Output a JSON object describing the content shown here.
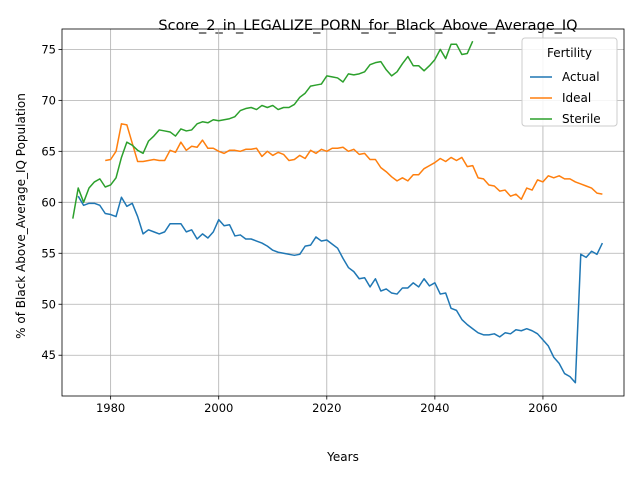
{
  "chart_data": {
    "type": "line",
    "title": "Score_2_in_LEGALIZE_PORN_for_Black_Above_Average_IQ",
    "xlabel": "Years",
    "ylabel": "% of Black Above_Average_IQ Population",
    "xlim": [
      1971,
      2075
    ],
    "ylim": [
      41,
      77
    ],
    "xticks": [
      1980,
      2000,
      2020,
      2040,
      2060
    ],
    "yticks": [
      45,
      50,
      55,
      60,
      65,
      70,
      75
    ],
    "grid": true,
    "legend": {
      "title": "Fertility",
      "placement": "top-right"
    },
    "series": [
      {
        "name": "Actual",
        "color": "#1f77b4",
        "points": [
          [
            1974,
            60.6
          ],
          [
            1975,
            59.7
          ],
          [
            1976,
            59.9
          ],
          [
            1977,
            59.9
          ],
          [
            1978,
            59.7
          ],
          [
            1979,
            58.9
          ],
          [
            1980,
            58.8
          ],
          [
            1981,
            58.6
          ],
          [
            1982,
            60.5
          ],
          [
            1983,
            59.6
          ],
          [
            1984,
            59.9
          ],
          [
            1985,
            58.6
          ],
          [
            1986,
            56.9
          ],
          [
            1987,
            57.3
          ],
          [
            1988,
            57.1
          ],
          [
            1989,
            56.9
          ],
          [
            1990,
            57.1
          ],
          [
            1991,
            57.9
          ],
          [
            1992,
            57.9
          ],
          [
            1993,
            57.9
          ],
          [
            1994,
            57.1
          ],
          [
            1995,
            57.3
          ],
          [
            1996,
            56.4
          ],
          [
            1997,
            56.9
          ],
          [
            1998,
            56.5
          ],
          [
            1999,
            57.1
          ],
          [
            2000,
            58.3
          ],
          [
            2001,
            57.7
          ],
          [
            2002,
            57.8
          ],
          [
            2003,
            56.7
          ],
          [
            2004,
            56.8
          ],
          [
            2005,
            56.4
          ],
          [
            2006,
            56.4
          ],
          [
            2007,
            56.2
          ],
          [
            2008,
            56.0
          ],
          [
            2009,
            55.7
          ],
          [
            2010,
            55.3
          ],
          [
            2011,
            55.1
          ],
          [
            2012,
            55.0
          ],
          [
            2013,
            54.9
          ],
          [
            2014,
            54.8
          ],
          [
            2015,
            54.9
          ],
          [
            2016,
            55.7
          ],
          [
            2017,
            55.8
          ],
          [
            2018,
            56.6
          ],
          [
            2019,
            56.2
          ],
          [
            2020,
            56.3
          ],
          [
            2021,
            55.9
          ],
          [
            2022,
            55.5
          ],
          [
            2023,
            54.5
          ],
          [
            2024,
            53.6
          ],
          [
            2025,
            53.2
          ],
          [
            2026,
            52.5
          ],
          [
            2027,
            52.6
          ],
          [
            2028,
            51.7
          ],
          [
            2029,
            52.5
          ],
          [
            2030,
            51.3
          ],
          [
            2031,
            51.5
          ],
          [
            2032,
            51.1
          ],
          [
            2033,
            51.0
          ],
          [
            2034,
            51.6
          ],
          [
            2035,
            51.6
          ],
          [
            2036,
            52.1
          ],
          [
            2037,
            51.7
          ],
          [
            2038,
            52.5
          ],
          [
            2039,
            51.8
          ],
          [
            2040,
            52.1
          ],
          [
            2041,
            51.0
          ],
          [
            2042,
            51.1
          ],
          [
            2043,
            49.6
          ],
          [
            2044,
            49.4
          ],
          [
            2045,
            48.5
          ],
          [
            2046,
            48.0
          ],
          [
            2047,
            47.6
          ],
          [
            2048,
            47.2
          ],
          [
            2049,
            47.0
          ],
          [
            2050,
            47.0
          ],
          [
            2051,
            47.1
          ],
          [
            2052,
            46.8
          ],
          [
            2053,
            47.2
          ],
          [
            2054,
            47.1
          ],
          [
            2055,
            47.5
          ],
          [
            2056,
            47.4
          ],
          [
            2057,
            47.6
          ],
          [
            2058,
            47.4
          ],
          [
            2059,
            47.1
          ],
          [
            2060,
            46.5
          ],
          [
            2061,
            45.9
          ],
          [
            2062,
            44.8
          ],
          [
            2063,
            44.2
          ],
          [
            2064,
            43.2
          ],
          [
            2065,
            42.9
          ],
          [
            2066,
            42.3
          ],
          [
            2067,
            54.9
          ],
          [
            2068,
            54.6
          ],
          [
            2069,
            55.2
          ],
          [
            2070,
            54.9
          ],
          [
            2071,
            56.0
          ]
        ]
      },
      {
        "name": "Ideal",
        "color": "#ff7f0e",
        "points": [
          [
            1979,
            64.1
          ],
          [
            1980,
            64.2
          ],
          [
            1981,
            65.0
          ],
          [
            1982,
            67.7
          ],
          [
            1983,
            67.6
          ],
          [
            1984,
            65.8
          ],
          [
            1985,
            64.0
          ],
          [
            1986,
            64.0
          ],
          [
            1987,
            64.1
          ],
          [
            1988,
            64.2
          ],
          [
            1989,
            64.1
          ],
          [
            1990,
            64.1
          ],
          [
            1991,
            65.1
          ],
          [
            1992,
            64.9
          ],
          [
            1993,
            65.9
          ],
          [
            1994,
            65.1
          ],
          [
            1995,
            65.5
          ],
          [
            1996,
            65.4
          ],
          [
            1997,
            66.1
          ],
          [
            1998,
            65.3
          ],
          [
            1999,
            65.3
          ],
          [
            2000,
            65.0
          ],
          [
            2001,
            64.8
          ],
          [
            2002,
            65.1
          ],
          [
            2003,
            65.1
          ],
          [
            2004,
            65.0
          ],
          [
            2005,
            65.2
          ],
          [
            2006,
            65.2
          ],
          [
            2007,
            65.3
          ],
          [
            2008,
            64.5
          ],
          [
            2009,
            65.0
          ],
          [
            2010,
            64.6
          ],
          [
            2011,
            64.9
          ],
          [
            2012,
            64.7
          ],
          [
            2013,
            64.1
          ],
          [
            2014,
            64.2
          ],
          [
            2015,
            64.6
          ],
          [
            2016,
            64.3
          ],
          [
            2017,
            65.1
          ],
          [
            2018,
            64.8
          ],
          [
            2019,
            65.2
          ],
          [
            2020,
            65.0
          ],
          [
            2021,
            65.3
          ],
          [
            2022,
            65.3
          ],
          [
            2023,
            65.4
          ],
          [
            2024,
            65.0
          ],
          [
            2025,
            65.2
          ],
          [
            2026,
            64.7
          ],
          [
            2027,
            64.8
          ],
          [
            2028,
            64.2
          ],
          [
            2029,
            64.2
          ],
          [
            2030,
            63.4
          ],
          [
            2031,
            63.0
          ],
          [
            2032,
            62.5
          ],
          [
            2033,
            62.1
          ],
          [
            2034,
            62.4
          ],
          [
            2035,
            62.1
          ],
          [
            2036,
            62.7
          ],
          [
            2037,
            62.7
          ],
          [
            2038,
            63.3
          ],
          [
            2039,
            63.6
          ],
          [
            2040,
            63.9
          ],
          [
            2041,
            64.3
          ],
          [
            2042,
            64.0
          ],
          [
            2043,
            64.4
          ],
          [
            2044,
            64.1
          ],
          [
            2045,
            64.4
          ],
          [
            2046,
            63.5
          ],
          [
            2047,
            63.6
          ],
          [
            2048,
            62.4
          ],
          [
            2049,
            62.3
          ],
          [
            2050,
            61.7
          ],
          [
            2051,
            61.6
          ],
          [
            2052,
            61.1
          ],
          [
            2053,
            61.2
          ],
          [
            2054,
            60.6
          ],
          [
            2055,
            60.8
          ],
          [
            2056,
            60.3
          ],
          [
            2057,
            61.4
          ],
          [
            2058,
            61.2
          ],
          [
            2059,
            62.2
          ],
          [
            2060,
            62.0
          ],
          [
            2061,
            62.6
          ],
          [
            2062,
            62.4
          ],
          [
            2063,
            62.6
          ],
          [
            2064,
            62.3
          ],
          [
            2065,
            62.3
          ],
          [
            2066,
            62.0
          ],
          [
            2067,
            61.8
          ],
          [
            2068,
            61.6
          ],
          [
            2069,
            61.4
          ],
          [
            2070,
            60.9
          ],
          [
            2071,
            60.8
          ]
        ]
      },
      {
        "name": "Sterile",
        "color": "#2ca02c",
        "points": [
          [
            1973,
            58.4
          ],
          [
            1974,
            61.4
          ],
          [
            1975,
            60.0
          ],
          [
            1976,
            61.4
          ],
          [
            1977,
            62.0
          ],
          [
            1978,
            62.3
          ],
          [
            1979,
            61.5
          ],
          [
            1980,
            61.7
          ],
          [
            1981,
            62.4
          ],
          [
            1982,
            64.4
          ],
          [
            1983,
            65.9
          ],
          [
            1984,
            65.6
          ],
          [
            1985,
            65.1
          ],
          [
            1986,
            64.8
          ],
          [
            1987,
            66.0
          ],
          [
            1988,
            66.5
          ],
          [
            1989,
            67.1
          ],
          [
            1990,
            67.0
          ],
          [
            1991,
            66.9
          ],
          [
            1992,
            66.5
          ],
          [
            1993,
            67.2
          ],
          [
            1994,
            67.0
          ],
          [
            1995,
            67.1
          ],
          [
            1996,
            67.7
          ],
          [
            1997,
            67.9
          ],
          [
            1998,
            67.8
          ],
          [
            1999,
            68.1
          ],
          [
            2000,
            68.0
          ],
          [
            2001,
            68.1
          ],
          [
            2002,
            68.2
          ],
          [
            2003,
            68.4
          ],
          [
            2004,
            69.0
          ],
          [
            2005,
            69.2
          ],
          [
            2006,
            69.3
          ],
          [
            2007,
            69.1
          ],
          [
            2008,
            69.5
          ],
          [
            2009,
            69.3
          ],
          [
            2010,
            69.5
          ],
          [
            2011,
            69.1
          ],
          [
            2012,
            69.3
          ],
          [
            2013,
            69.3
          ],
          [
            2014,
            69.6
          ],
          [
            2015,
            70.3
          ],
          [
            2016,
            70.7
          ],
          [
            2017,
            71.4
          ],
          [
            2018,
            71.5
          ],
          [
            2019,
            71.6
          ],
          [
            2020,
            72.4
          ],
          [
            2021,
            72.3
          ],
          [
            2022,
            72.2
          ],
          [
            2023,
            71.8
          ],
          [
            2024,
            72.6
          ],
          [
            2025,
            72.5
          ],
          [
            2026,
            72.6
          ],
          [
            2027,
            72.8
          ],
          [
            2028,
            73.5
          ],
          [
            2029,
            73.7
          ],
          [
            2030,
            73.8
          ],
          [
            2031,
            73.0
          ],
          [
            2032,
            72.4
          ],
          [
            2033,
            72.8
          ],
          [
            2034,
            73.6
          ],
          [
            2035,
            74.3
          ],
          [
            2036,
            73.4
          ],
          [
            2037,
            73.4
          ],
          [
            2038,
            72.9
          ],
          [
            2039,
            73.4
          ],
          [
            2040,
            74.0
          ],
          [
            2041,
            75.0
          ],
          [
            2042,
            74.1
          ],
          [
            2043,
            75.5
          ],
          [
            2044,
            75.5
          ],
          [
            2045,
            74.5
          ],
          [
            2046,
            74.6
          ],
          [
            2047,
            75.8
          ]
        ]
      }
    ]
  }
}
